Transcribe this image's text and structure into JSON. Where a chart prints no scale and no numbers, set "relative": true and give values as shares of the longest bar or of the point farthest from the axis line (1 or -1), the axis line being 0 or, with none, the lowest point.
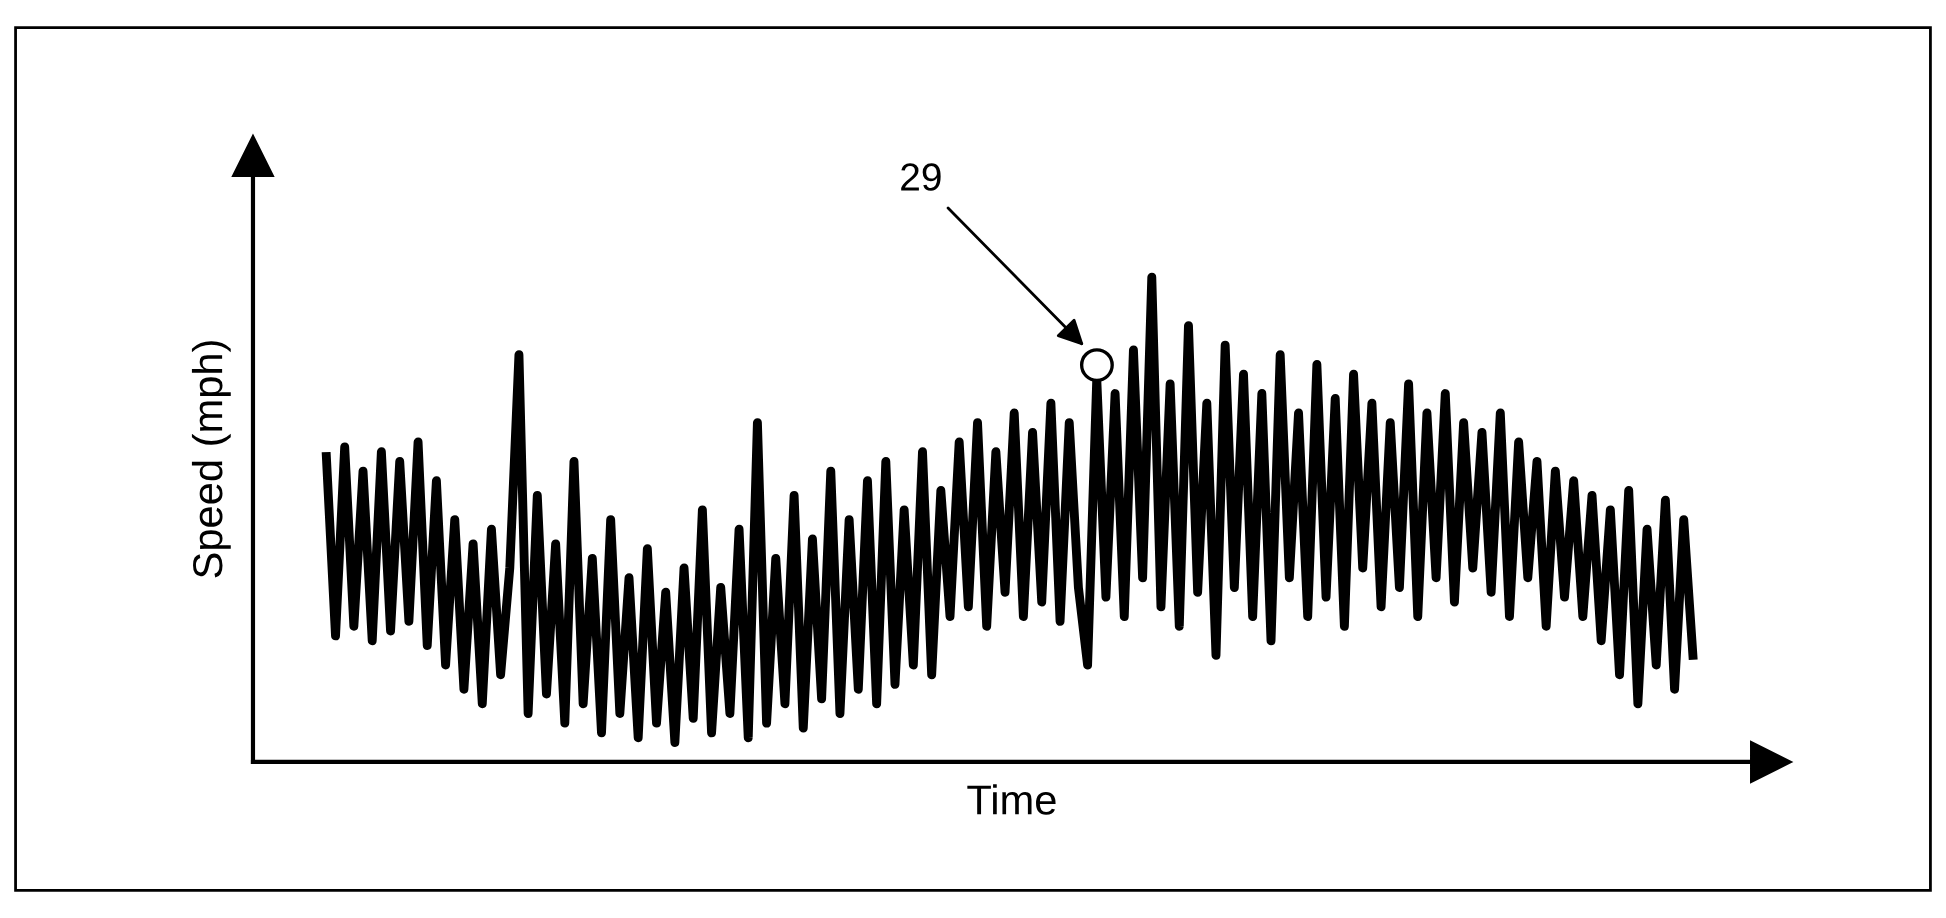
{
  "chart_data": {
    "type": "line",
    "relative": true,
    "xlabel": "Time",
    "ylabel": "Speed (mph)",
    "categories": [
      null,
      null,
      null,
      null,
      null,
      null,
      null,
      null,
      null,
      null,
      null,
      null,
      null,
      null,
      null,
      null,
      null,
      null,
      null,
      null,
      null,
      null,
      null,
      null,
      null,
      null,
      null,
      null,
      null,
      null,
      null,
      null,
      null,
      null,
      null,
      null,
      null,
      null,
      null,
      null,
      null,
      null,
      null,
      null,
      null,
      null,
      null,
      null,
      null,
      null,
      null,
      null,
      null,
      null,
      null,
      null,
      null,
      null,
      null,
      null,
      null,
      null,
      null,
      null,
      null,
      null,
      null,
      null,
      null,
      null,
      null,
      null,
      null,
      null,
      null,
      null,
      null,
      null,
      null,
      null,
      null,
      null,
      null,
      null,
      null,
      null,
      null,
      null,
      null,
      null,
      null,
      null,
      null,
      null,
      null,
      null,
      null,
      null,
      null,
      null,
      null,
      null,
      null,
      null,
      null,
      null,
      null,
      null,
      null,
      null,
      null,
      null,
      null,
      null,
      null,
      null,
      null,
      null,
      null,
      null,
      null,
      null,
      null,
      null,
      null,
      null,
      null,
      null,
      null,
      null,
      null,
      null,
      null,
      null,
      null,
      null,
      null,
      null,
      null,
      null,
      null,
      null,
      null,
      null,
      null,
      null,
      null,
      null,
      null,
      null
    ],
    "series": [
      {
        "color": "#000000",
        "values": [
          0.63,
          0.26,
          0.65,
          0.28,
          0.6,
          0.25,
          0.64,
          0.27,
          0.62,
          0.29,
          0.66,
          0.24,
          0.58,
          0.2,
          0.5,
          0.15,
          0.45,
          0.12,
          0.48,
          0.18,
          0.4,
          0.84,
          0.1,
          0.55,
          0.14,
          0.45,
          0.08,
          0.62,
          0.12,
          0.42,
          0.06,
          0.5,
          0.1,
          0.38,
          0.05,
          0.44,
          0.08,
          0.35,
          0.04,
          0.4,
          0.09,
          0.52,
          0.06,
          0.36,
          0.1,
          0.48,
          0.05,
          0.7,
          0.08,
          0.42,
          0.12,
          0.55,
          0.07,
          0.46,
          0.13,
          0.6,
          0.1,
          0.5,
          0.15,
          0.58,
          0.12,
          0.62,
          0.16,
          0.52,
          0.2,
          0.64,
          0.18,
          0.56,
          0.3,
          0.66,
          0.32,
          0.7,
          0.28,
          0.64,
          0.35,
          0.72,
          0.3,
          0.68,
          0.33,
          0.74,
          0.29,
          0.7,
          0.36,
          0.2,
          0.79,
          0.34,
          0.76,
          0.3,
          0.85,
          0.38,
          1.0,
          0.32,
          0.78,
          0.28,
          0.9,
          0.35,
          0.74,
          0.22,
          0.86,
          0.36,
          0.8,
          0.3,
          0.76,
          0.25,
          0.84,
          0.38,
          0.72,
          0.3,
          0.82,
          0.34,
          0.75,
          0.28,
          0.8,
          0.4,
          0.74,
          0.32,
          0.7,
          0.36,
          0.78,
          0.3,
          0.72,
          0.38,
          0.76,
          0.33,
          0.7,
          0.4,
          0.68,
          0.35,
          0.72,
          0.3,
          0.66,
          0.38,
          0.62,
          0.28,
          0.6,
          0.34,
          0.58,
          0.3,
          0.55,
          0.25,
          0.52,
          0.18,
          0.56,
          0.12,
          0.48,
          0.2,
          0.54,
          0.15,
          0.5,
          0.22
        ]
      }
    ],
    "annotations": [
      "29"
    ],
    "legend": false
  }
}
